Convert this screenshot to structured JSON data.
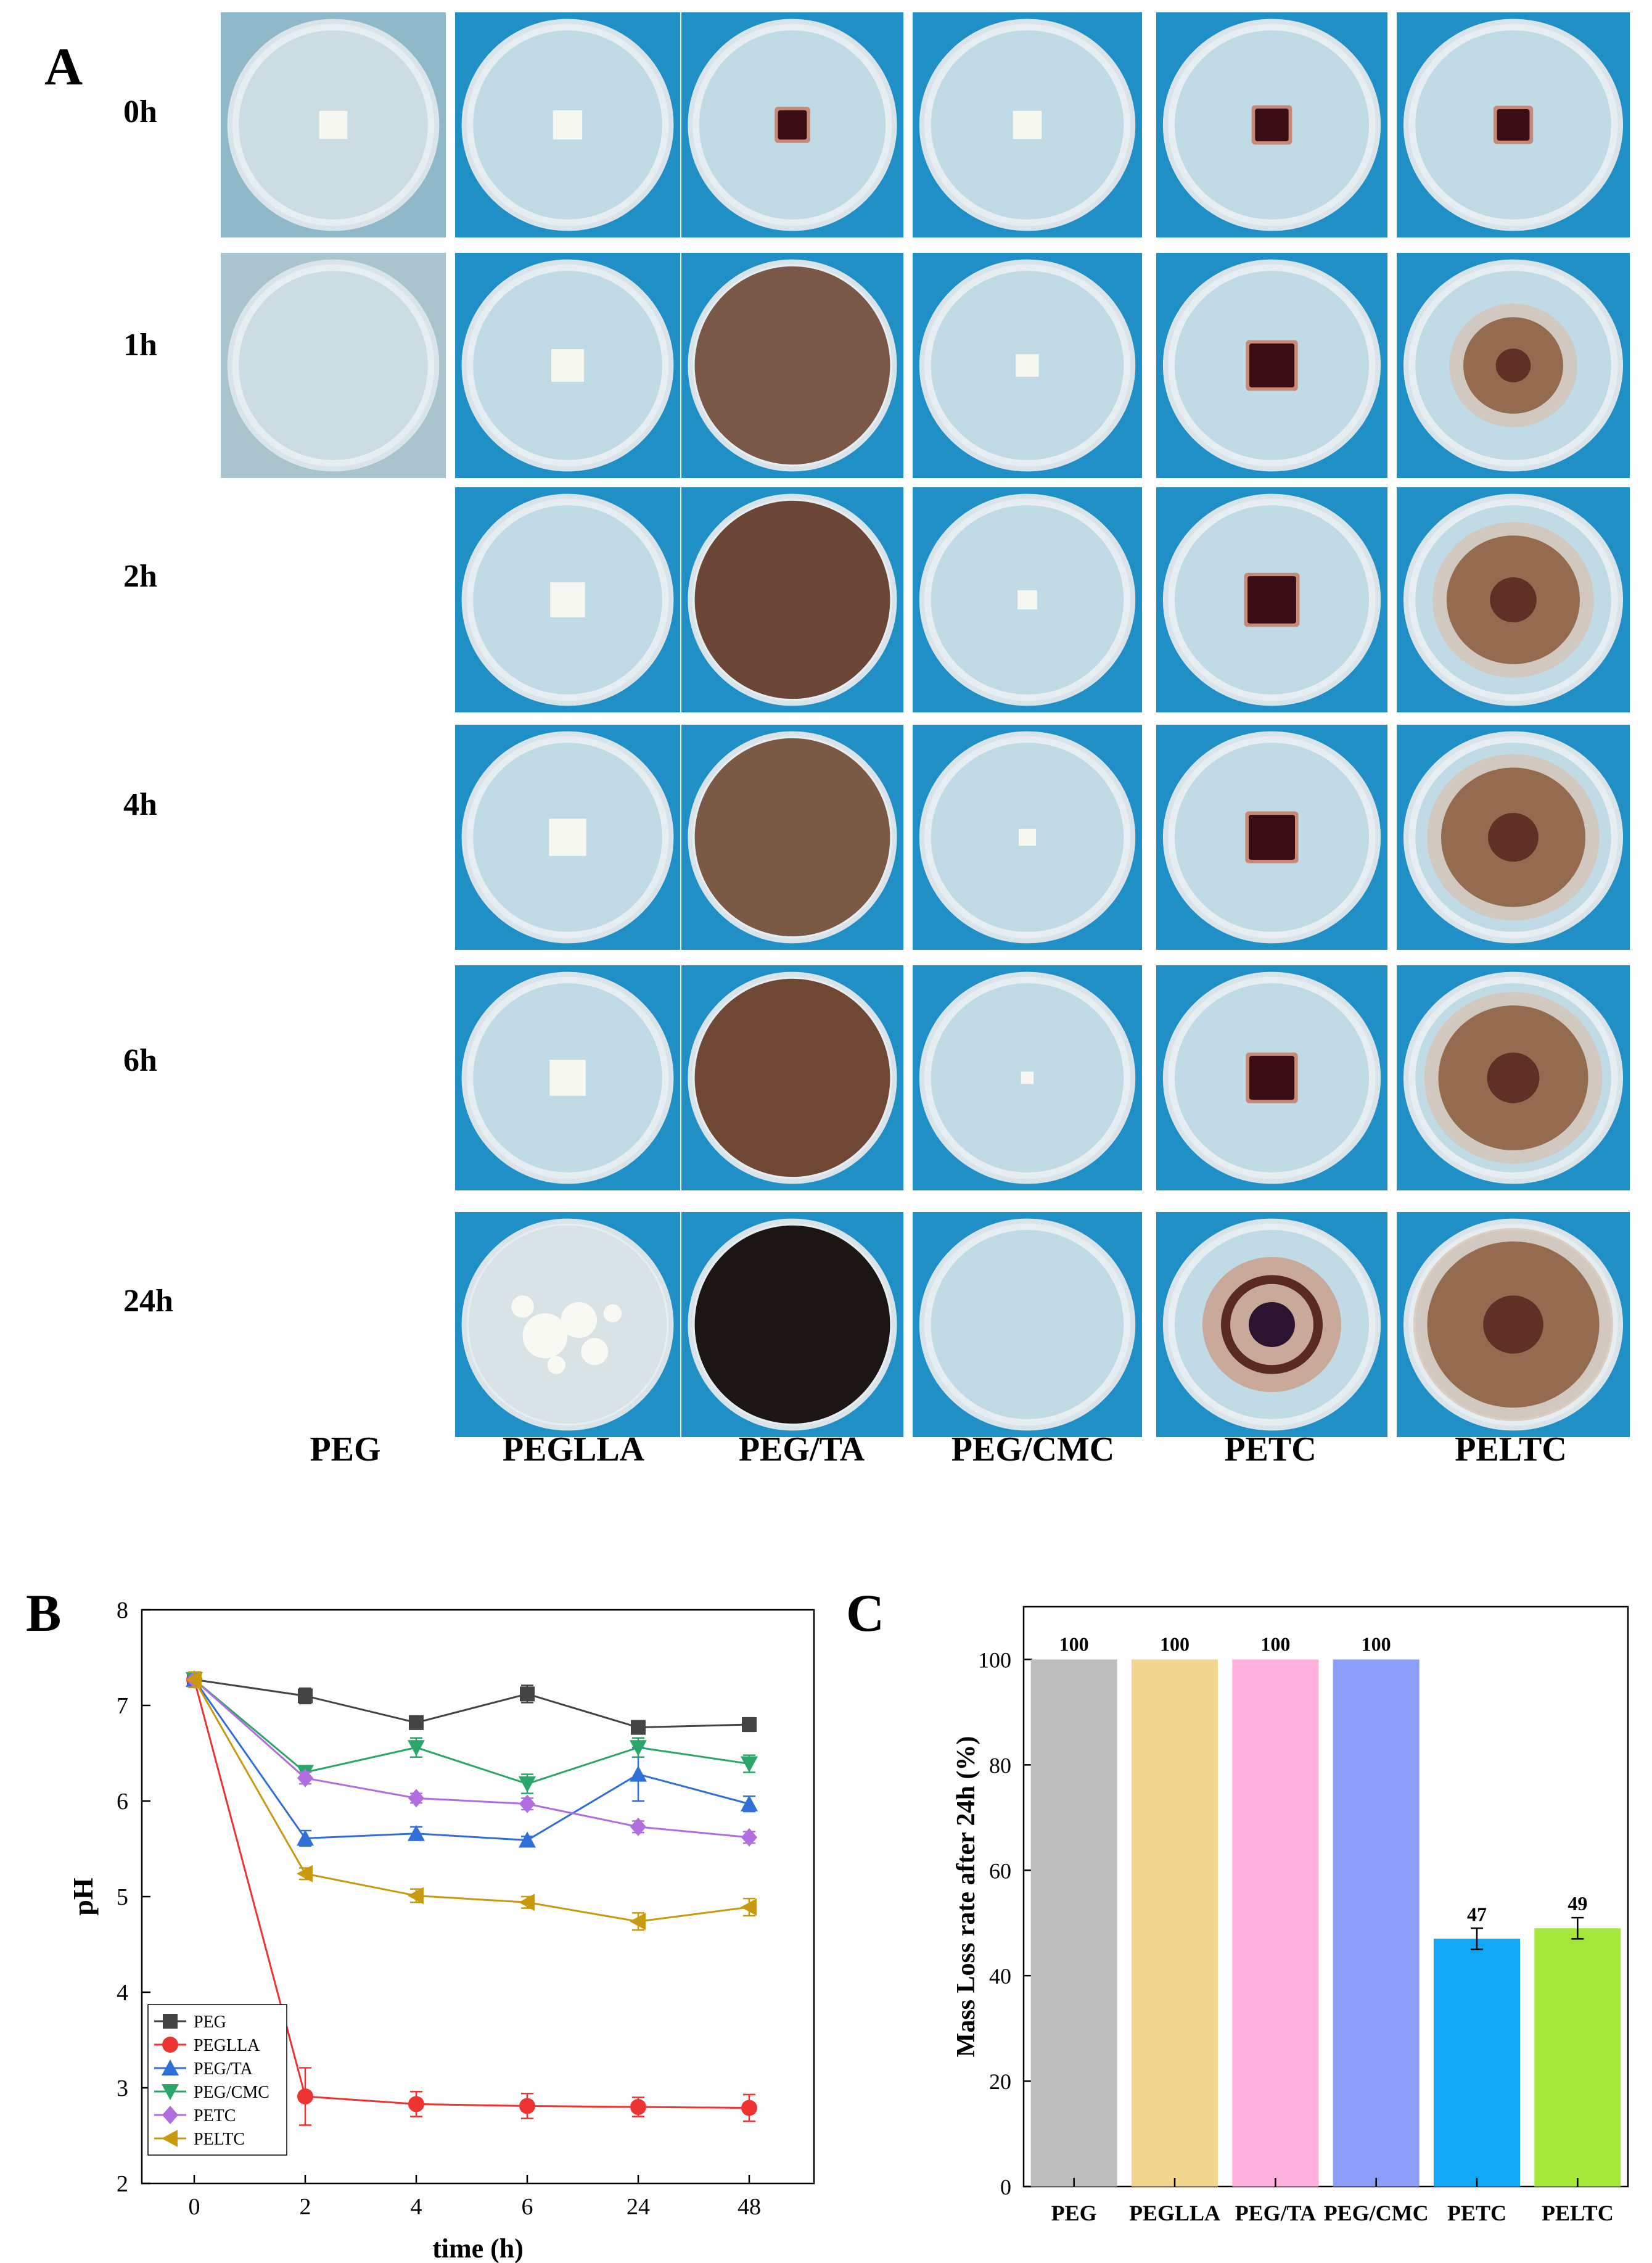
{
  "panel_a": {
    "letter": "A",
    "time_labels": [
      "0h",
      "1h",
      "2h",
      "4h",
      "6h",
      "24h"
    ],
    "column_labels": [
      "PEG",
      "PEGLLA",
      "PEG/TA",
      "PEG/CMC",
      "PETC",
      "PELTC"
    ],
    "colors": {
      "background_blue": "#1f8fc6",
      "dish_edge": "#d9e4ea",
      "white_sample": "#f7f7f2",
      "dark_red_sample": "#3a0d14",
      "brown_spread": "#8a5a3a"
    }
  },
  "chart_data": [
    {
      "id": "B",
      "type": "line",
      "panel_letter": "B",
      "title": "",
      "xlabel": "time (h)",
      "ylabel": "pH",
      "categories": [
        "0",
        "2",
        "4",
        "6",
        "24",
        "48"
      ],
      "yticks": [
        "2",
        "3",
        "4",
        "5",
        "6",
        "7",
        "8"
      ],
      "ylim": [
        2,
        8
      ],
      "legend_position": "bottom-left",
      "series": [
        {
          "name": "PEG",
          "color": "#444444",
          "marker": "square",
          "values": [
            7.27,
            7.1,
            6.82,
            7.12,
            6.77,
            6.8
          ],
          "errors": [
            0.08,
            0.08,
            0.05,
            0.09,
            0.05,
            0.07
          ]
        },
        {
          "name": "PEGLLA",
          "color": "#ee3333",
          "marker": "circle",
          "values": [
            7.27,
            2.91,
            2.83,
            2.81,
            2.8,
            2.79
          ],
          "errors": [
            0.08,
            0.3,
            0.13,
            0.13,
            0.1,
            0.14
          ]
        },
        {
          "name": "PEG/TA",
          "color": "#2f6fd6",
          "marker": "triangle-up",
          "values": [
            7.27,
            5.61,
            5.66,
            5.59,
            6.28,
            5.97
          ],
          "errors": [
            0.08,
            0.08,
            0.07,
            0.04,
            0.28,
            0.08
          ]
        },
        {
          "name": "PEG/CMC",
          "color": "#2aa66a",
          "marker": "triangle-down",
          "values": [
            7.27,
            6.3,
            6.56,
            6.18,
            6.56,
            6.39
          ],
          "errors": [
            0.08,
            0.06,
            0.1,
            0.1,
            0.1,
            0.09
          ]
        },
        {
          "name": "PETC",
          "color": "#b06ee0",
          "marker": "diamond",
          "values": [
            7.27,
            6.24,
            6.03,
            5.97,
            5.73,
            5.62
          ],
          "errors": [
            0.08,
            0.06,
            0.05,
            0.06,
            0.06,
            0.06
          ]
        },
        {
          "name": "PELTC",
          "color": "#c99a10",
          "marker": "triangle-left",
          "values": [
            7.27,
            5.24,
            5.01,
            4.94,
            4.74,
            4.89
          ],
          "errors": [
            0.08,
            0.06,
            0.07,
            0.06,
            0.09,
            0.09
          ]
        }
      ]
    },
    {
      "id": "C",
      "type": "bar",
      "panel_letter": "C",
      "title": "",
      "xlabel": "",
      "ylabel": "Mass Loss rate after 24h (%)",
      "categories": [
        "PEG",
        "PEGLLA",
        "PEG/TA",
        "PEG/CMC",
        "PETC",
        "PELTC"
      ],
      "values": [
        100,
        100,
        100,
        100,
        47,
        49
      ],
      "errors": [
        0,
        0,
        0,
        0,
        2,
        2
      ],
      "data_labels": [
        "100",
        "100",
        "100",
        "100",
        "47",
        "49"
      ],
      "colors": [
        "#bdbdbd",
        "#f2d58f",
        "#ffb0dc",
        "#8c9dfa",
        "#12a7f5",
        "#a6e83a"
      ],
      "yticks": [
        "0",
        "20",
        "40",
        "60",
        "80",
        "100"
      ],
      "ylim": [
        0,
        110
      ]
    }
  ]
}
